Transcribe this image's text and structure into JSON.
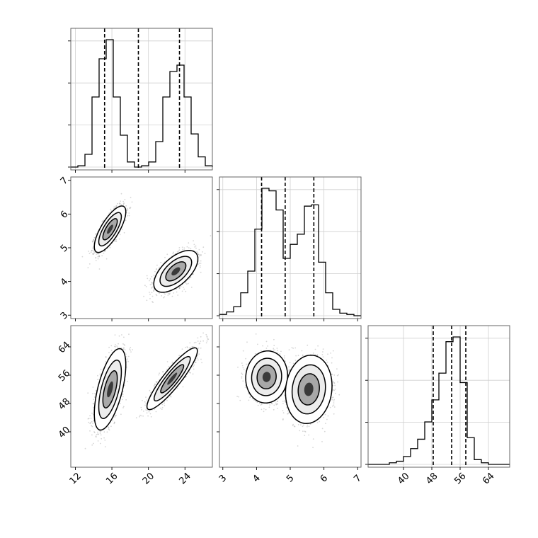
{
  "chart_data": {
    "type": "corner",
    "grid": true,
    "parameters": [
      {
        "axis_range": [
          11.5,
          27
        ],
        "ticks": [
          12,
          16,
          20,
          24
        ],
        "tick_labels": [
          "12",
          "16",
          "20",
          "24"
        ],
        "quantiles": [
          15.2,
          18.9,
          23.4
        ],
        "hist": {
          "range": [
            11.5,
            27
          ],
          "counts": [
            0,
            0.01,
            0.1,
            0.55,
            0.85,
            1.0,
            0.55,
            0.25,
            0.04,
            0.0,
            0.01,
            0.04,
            0.2,
            0.55,
            0.75,
            0.8,
            0.55,
            0.26,
            0.08,
            0.01
          ]
        }
      },
      {
        "axis_range": [
          2.9,
          7.1
        ],
        "ticks": [
          3,
          4,
          5,
          6,
          7
        ],
        "tick_labels": [
          "3",
          "4",
          "5",
          "6",
          "7"
        ],
        "quantiles": [
          4.15,
          4.85,
          5.7
        ],
        "hist": {
          "range": [
            2.9,
            7.1
          ],
          "counts": [
            0.01,
            0.03,
            0.07,
            0.18,
            0.35,
            0.68,
            1.0,
            0.98,
            0.83,
            0.45,
            0.56,
            0.64,
            0.86,
            0.87,
            0.42,
            0.18,
            0.05,
            0.02,
            0.01,
            0.0
          ]
        }
      },
      {
        "axis_range": [
          30,
          70
        ],
        "ticks": [
          40,
          48,
          56,
          64
        ],
        "tick_labels": [
          "40",
          "48",
          "56",
          "64"
        ],
        "quantiles": [
          48.4,
          53.6,
          57.6
        ],
        "hist": {
          "range": [
            30,
            70
          ],
          "counts": [
            0,
            0,
            0,
            0.01,
            0.02,
            0.05,
            0.1,
            0.16,
            0.27,
            0.41,
            0.58,
            0.78,
            0.81,
            0.52,
            0.17,
            0.03,
            0.01,
            0.0,
            0.0,
            0.0
          ]
        }
      }
    ],
    "pairs": [
      {
        "x_param": 0,
        "y_param": 1,
        "modes": [
          {
            "center": [
              15.8,
              5.55
            ],
            "sd": [
              0.75,
              0.3
            ],
            "rho": 0.75,
            "n": 1800
          },
          {
            "center": [
              23.0,
              4.3
            ],
            "sd": [
              1.05,
              0.27
            ],
            "rho": 0.6,
            "n": 1800
          }
        ]
      },
      {
        "x_param": 0,
        "y_param": 2,
        "modes": [
          {
            "center": [
              15.8,
              52.0
            ],
            "sd": [
              0.75,
              5.0
            ],
            "rho": 0.6,
            "n": 1800
          },
          {
            "center": [
              22.6,
              55.0
            ],
            "sd": [
              1.2,
              3.8
            ],
            "rho": 0.9,
            "n": 1800
          }
        ]
      },
      {
        "x_param": 1,
        "y_param": 2,
        "modes": [
          {
            "center": [
              4.3,
              55.5
            ],
            "sd": [
              0.27,
              3.2
            ],
            "rho": 0.05,
            "n": 1800
          },
          {
            "center": [
              5.55,
              52.0
            ],
            "sd": [
              0.3,
              4.2
            ],
            "rho": 0.1,
            "n": 1800
          }
        ]
      }
    ]
  }
}
